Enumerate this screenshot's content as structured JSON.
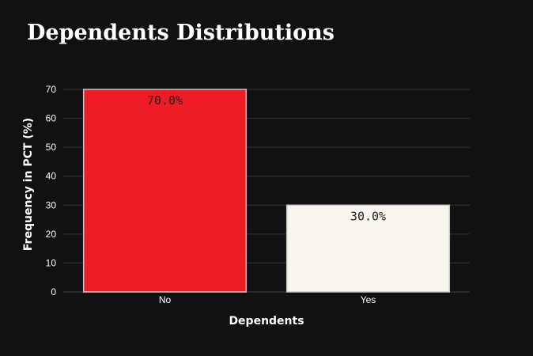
{
  "chart_data": {
    "type": "bar",
    "title": "Dependents Distributions",
    "xlabel": "Dependents",
    "ylabel": "Frequency in PCT (%)",
    "categories": [
      "No",
      "Yes"
    ],
    "values": [
      70,
      30
    ],
    "data_labels": [
      "70.0%",
      "30.0%"
    ],
    "colors": [
      "#ee1c25",
      "#f8f5ef"
    ],
    "bar_outline_color": "#c8c8c8",
    "ylim": [
      0,
      70
    ],
    "yticks": [
      0,
      10,
      20,
      30,
      40,
      50,
      60,
      70
    ],
    "grid": true,
    "background": "#111111",
    "grid_color": "#2e3440"
  }
}
